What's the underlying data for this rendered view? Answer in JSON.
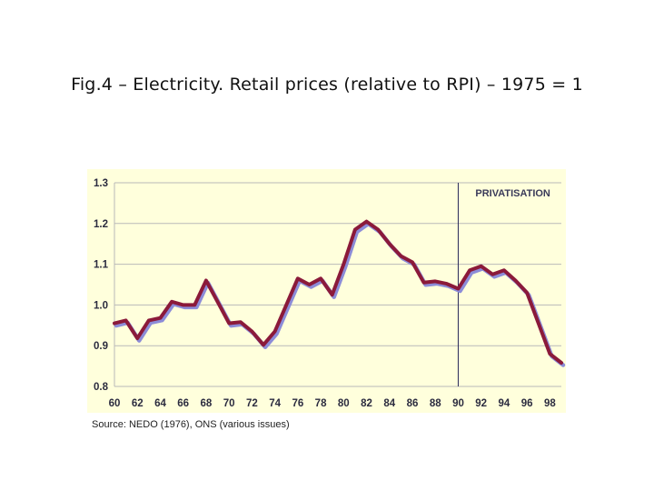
{
  "slide": {
    "title": "Fig.4 – Electricity. Retail prices (relative to RPI) – 1975 = 1",
    "source": "Source: NEDO (1976), ONS (various issues)"
  },
  "chart_data": {
    "type": "line",
    "title": "",
    "xlabel": "",
    "ylabel": "",
    "xlim": [
      1960,
      1999
    ],
    "ylim": [
      0.8,
      1.3
    ],
    "grid": true,
    "x_tick_labels": [
      "60",
      "62",
      "64",
      "66",
      "68",
      "70",
      "72",
      "74",
      "76",
      "78",
      "80",
      "82",
      "84",
      "86",
      "88",
      "90",
      "92",
      "94",
      "96",
      "98"
    ],
    "y_tick_labels": [
      "1.3",
      "1.2",
      "1.1",
      "1.0",
      "0.9",
      "0.8"
    ],
    "y_tick_values": [
      1.3,
      1.2,
      1.1,
      1.0,
      0.9,
      0.8
    ],
    "x_tick_values": [
      1960,
      1962,
      1964,
      1966,
      1968,
      1970,
      1972,
      1974,
      1976,
      1978,
      1980,
      1982,
      1984,
      1986,
      1988,
      1990,
      1992,
      1994,
      1996,
      1998
    ],
    "series": [
      {
        "color": "#8b1a3a",
        "shadow_color": "#8c8cd8",
        "x": [
          1960,
          1961,
          1962,
          1963,
          1964,
          1965,
          1966,
          1967,
          1968,
          1969,
          1970,
          1971,
          1972,
          1973,
          1974,
          1975,
          1976,
          1977,
          1978,
          1979,
          1980,
          1981,
          1982,
          1983,
          1984,
          1985,
          1986,
          1987,
          1988,
          1989,
          1990,
          1991,
          1992,
          1993,
          1994,
          1995,
          1996,
          1997,
          1998,
          1999
        ],
        "y": [
          0.955,
          0.962,
          0.918,
          0.962,
          0.968,
          1.008,
          1.0,
          1.0,
          1.06,
          1.008,
          0.955,
          0.958,
          0.935,
          0.902,
          0.935,
          1.0,
          1.065,
          1.05,
          1.065,
          1.025,
          1.1,
          1.185,
          1.205,
          1.185,
          1.15,
          1.12,
          1.105,
          1.055,
          1.058,
          1.052,
          1.04,
          1.085,
          1.095,
          1.075,
          1.085,
          1.06,
          1.03,
          0.955,
          0.88,
          0.858
        ]
      }
    ],
    "annotations": [
      {
        "type": "vline",
        "x": 1990,
        "color": "#2a2a5a"
      },
      {
        "type": "text",
        "text": "PRIVATISATION",
        "x": 1991.5,
        "y": 1.275
      }
    ]
  }
}
